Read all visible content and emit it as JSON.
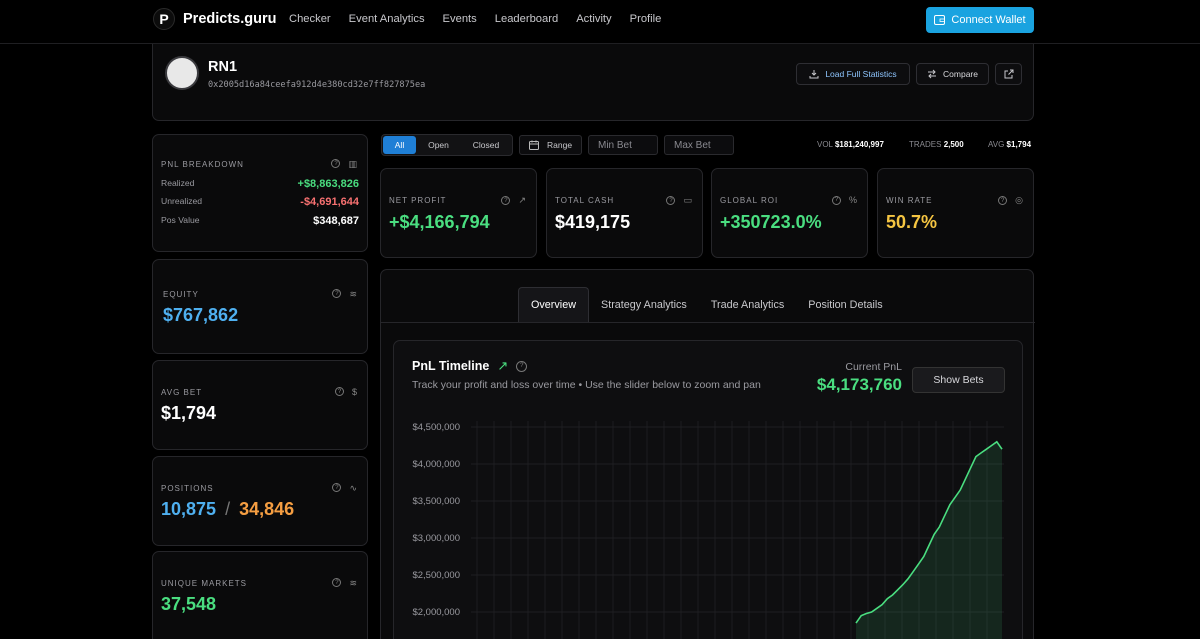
{
  "brand": {
    "name": "Predicts.guru",
    "logo_letter": "P"
  },
  "nav": [
    "Checker",
    "Event Analytics",
    "Events",
    "Leaderboard",
    "Activity",
    "Profile"
  ],
  "connect_wallet": "Connect Wallet",
  "profile": {
    "name": "RN1",
    "address": "0x2005d16a84ceefa912d4e380cd32e7ff827875ea",
    "load_full_stats": "Load Full Statistics",
    "compare": "Compare"
  },
  "pnl_breakdown": {
    "title": "PNL BREAKDOWN",
    "rows": [
      {
        "label": "Realized",
        "value": "+$8,863,826",
        "color": "#4ade80"
      },
      {
        "label": "Unrealized",
        "value": "-$4,691,644",
        "color": "#f87171"
      },
      {
        "label": "Pos Value",
        "value": "$348,687",
        "color": "#ffffff"
      }
    ]
  },
  "equity": {
    "label": "EQUITY",
    "value": "$767,862",
    "color": "#4fb0f0"
  },
  "avg_bet": {
    "label": "AVG BET",
    "value": "$1,794",
    "color": "#ffffff"
  },
  "positions": {
    "label": "POSITIONS",
    "open": "10,875",
    "sep": "/",
    "total": "34,846",
    "open_color": "#4fb0f0",
    "total_color": "#f59e42"
  },
  "unique_markets": {
    "label": "UNIQUE MARKETS",
    "value": "37,548",
    "color": "#4ade80"
  },
  "filters": {
    "segments": [
      "All",
      "Open",
      "Closed"
    ],
    "active": "All",
    "range": "Range",
    "min_bet_placeholder": "Min Bet",
    "max_bet_placeholder": "Max Bet"
  },
  "summary": {
    "vol_label": "VOL",
    "vol_value": "$181,240,997",
    "trades_label": "TRADES",
    "trades_value": "2,500",
    "avg_label": "AVG",
    "avg_value": "$1,794"
  },
  "metrics": [
    {
      "label": "NET PROFIT",
      "value": "+$4,166,794",
      "color": "#4ade80",
      "icon": "trend-icon"
    },
    {
      "label": "TOTAL CASH",
      "value": "$419,175",
      "color": "#ffffff",
      "icon": "wallet-icon"
    },
    {
      "label": "GLOBAL ROI",
      "value": "+350723.0%",
      "color": "#4ade80",
      "icon": "percent-icon"
    },
    {
      "label": "WIN RATE",
      "value": "50.7%",
      "color": "#f5c542",
      "icon": "target-icon"
    }
  ],
  "tabs": [
    "Overview",
    "Strategy Analytics",
    "Trade Analytics",
    "Position Details"
  ],
  "active_tab": "Overview",
  "timeline": {
    "title": "PnL Timeline",
    "subtitle": "Track your profit and loss over time • Use the slider below to zoom and pan",
    "current_label": "Current PnL",
    "current_value": "$4,173,760",
    "show_bets": "Show Bets"
  },
  "chart_data": {
    "type": "area",
    "title": "PnL Timeline",
    "y_ticks": [
      "$4,500,000",
      "$4,000,000",
      "$3,500,000",
      "$3,000,000",
      "$2,500,000",
      "$2,000,000"
    ],
    "ylim": [
      1700000,
      4500000
    ],
    "grid": true,
    "series": [
      {
        "values": [
          1850000,
          1950000,
          1980000,
          2000000,
          2050000,
          2100000,
          2180000,
          2230000,
          2300000,
          2370000,
          2450000,
          2550000,
          2650000,
          2750000,
          2900000,
          3050000,
          3150000,
          3300000,
          3450000,
          3550000,
          3650000,
          3800000,
          3950000,
          4100000,
          4150000,
          4200000,
          4250000,
          4300000,
          4200000
        ],
        "color": "#4ade80"
      }
    ]
  }
}
